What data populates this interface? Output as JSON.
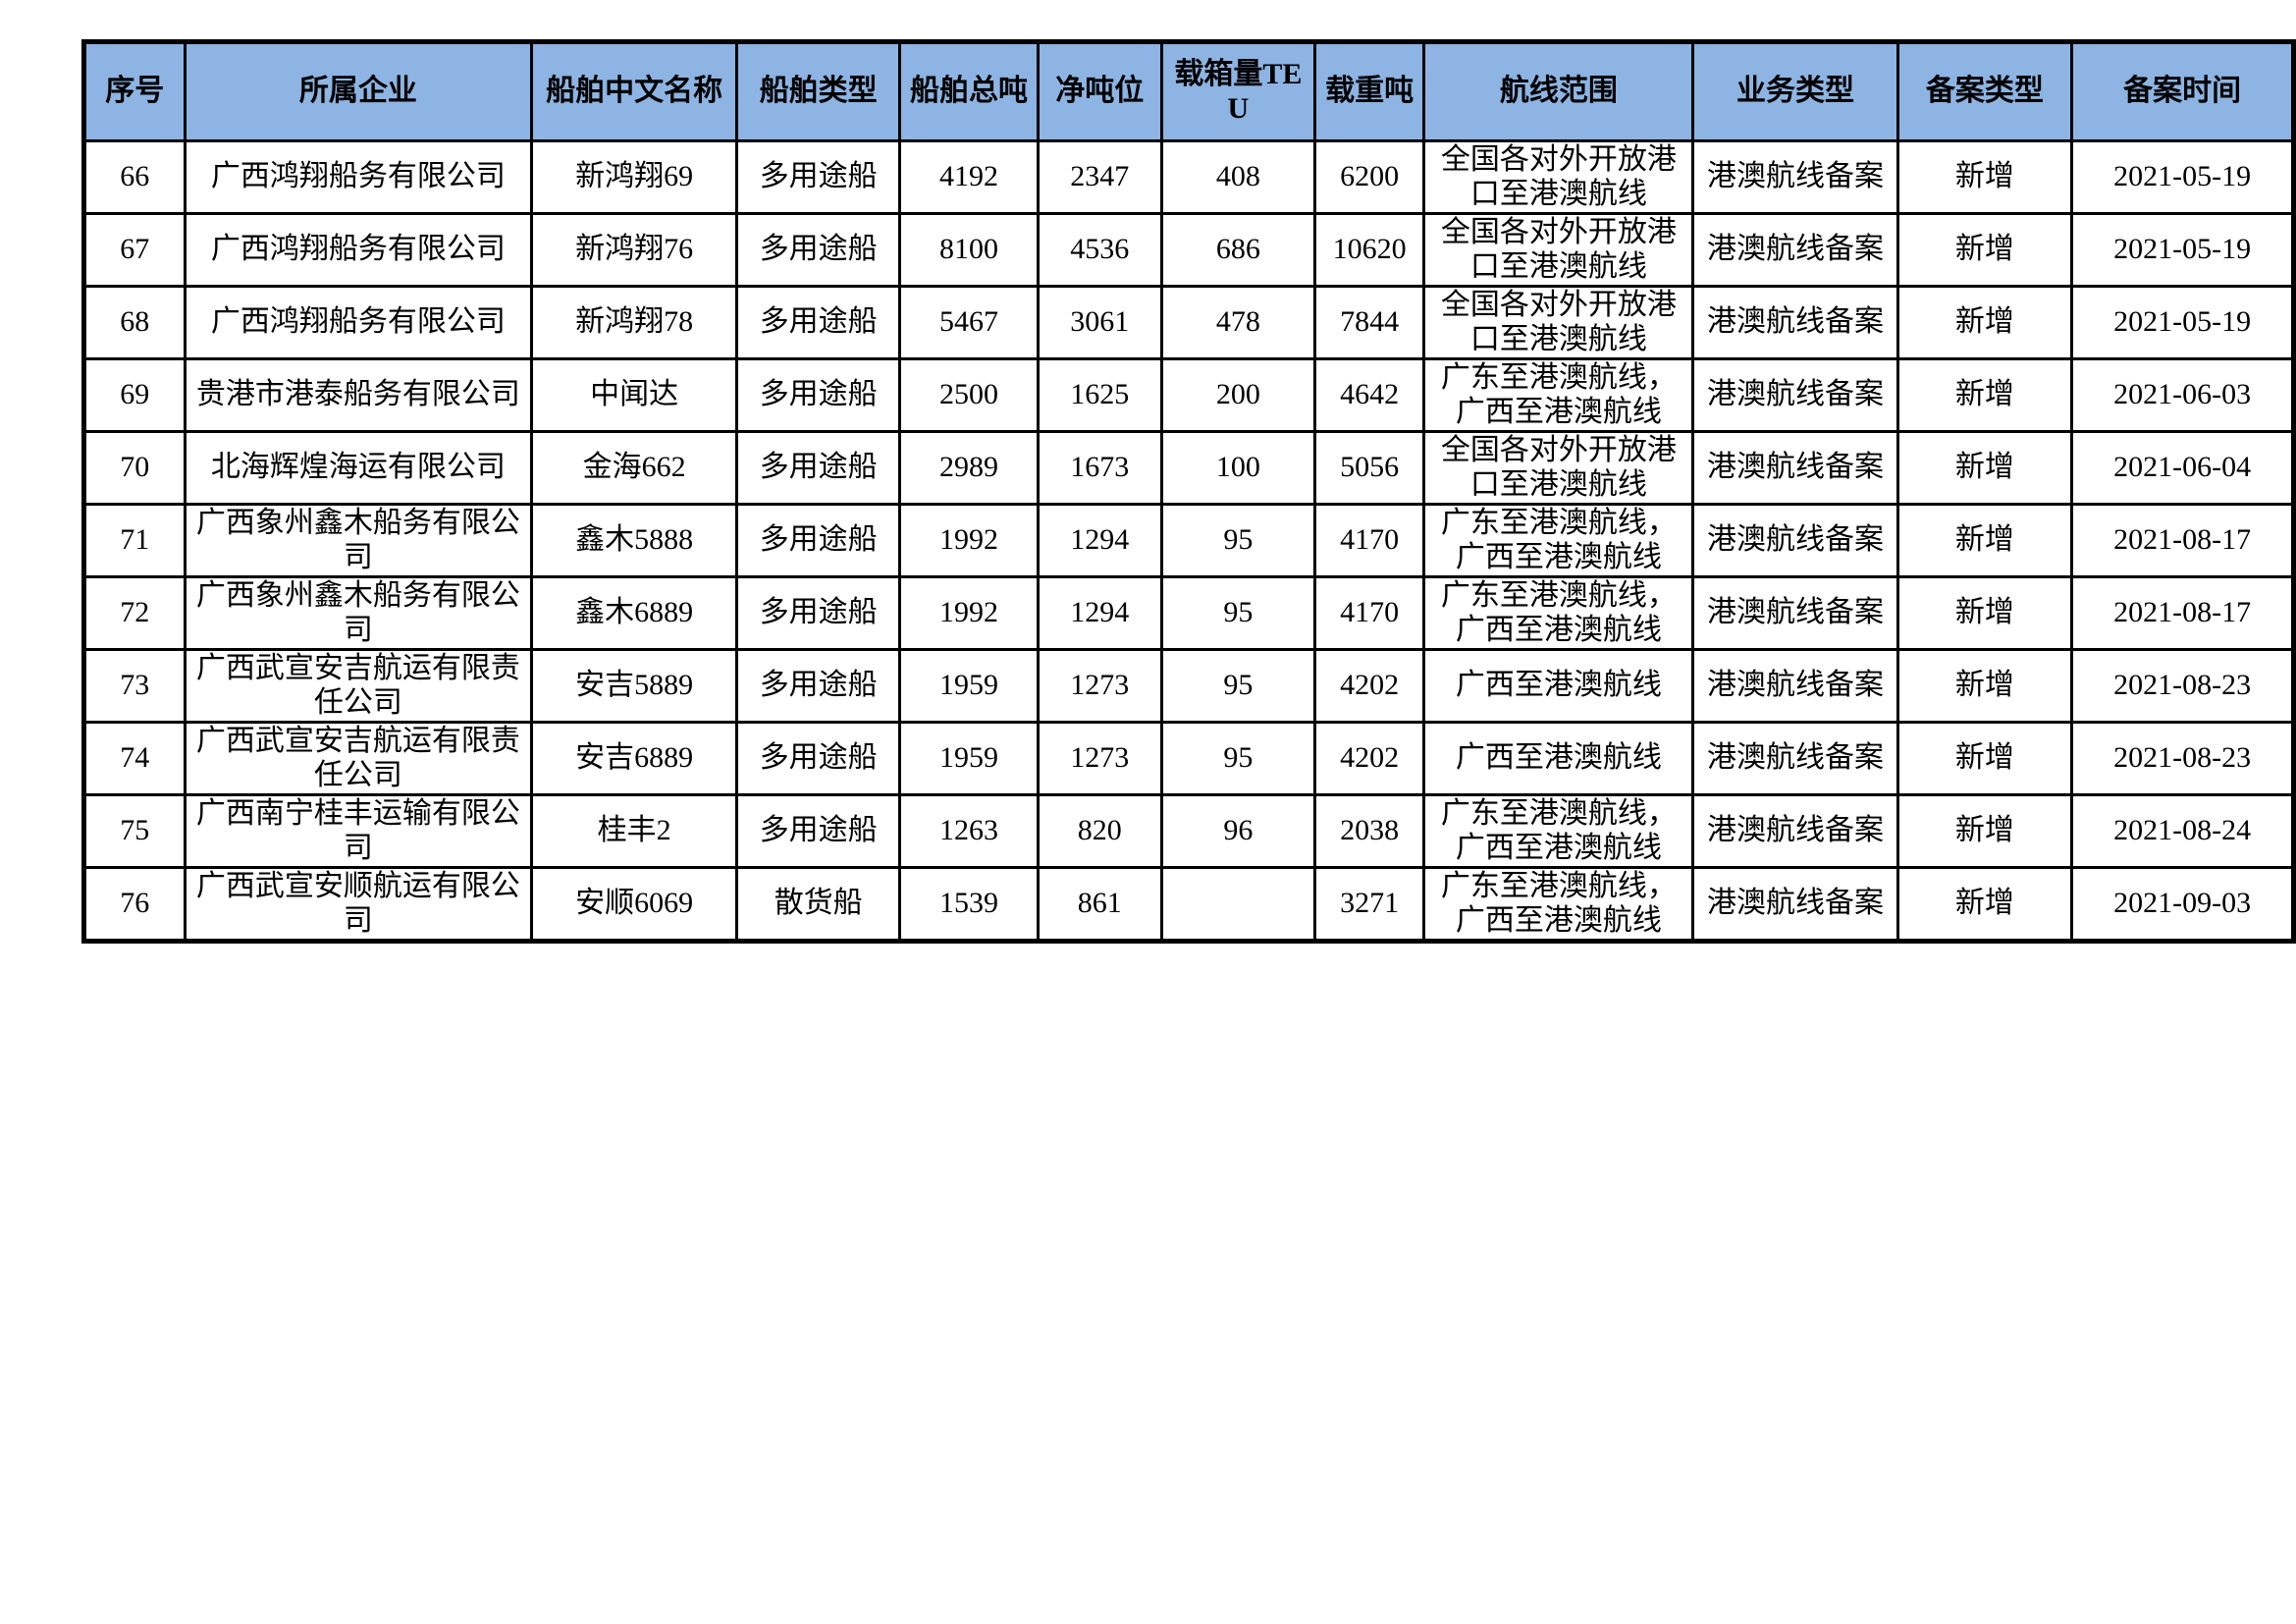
{
  "colors": {
    "header_background": "#8db4e2",
    "border": "#000000",
    "page_background": "#ffffff",
    "text": "#000000"
  },
  "table": {
    "columns": [
      {
        "key": "seq",
        "label": "序号"
      },
      {
        "key": "company",
        "label": "所属企业"
      },
      {
        "key": "ship_name",
        "label": "船舶中文名称"
      },
      {
        "key": "ship_type",
        "label": "船舶类型"
      },
      {
        "key": "gross_tonnage",
        "label": "船舶总吨"
      },
      {
        "key": "net_tonnage",
        "label": "净吨位"
      },
      {
        "key": "teu",
        "label": "载箱量TEU"
      },
      {
        "key": "deadweight",
        "label": "载重吨"
      },
      {
        "key": "route",
        "label": "航线范围"
      },
      {
        "key": "business_type",
        "label": "业务类型"
      },
      {
        "key": "filing_type",
        "label": "备案类型"
      },
      {
        "key": "filing_date",
        "label": "备案时间"
      }
    ],
    "rows": [
      {
        "seq": "66",
        "company": "广西鸿翔船务有限公司",
        "ship_name": "新鸿翔69",
        "ship_type": "多用途船",
        "gross_tonnage": "4192",
        "net_tonnage": "2347",
        "teu": "408",
        "deadweight": "6200",
        "route": "全国各对外开放港口至港澳航线",
        "business_type": "港澳航线备案",
        "filing_type": "新增",
        "filing_date": "2021-05-19"
      },
      {
        "seq": "67",
        "company": "广西鸿翔船务有限公司",
        "ship_name": "新鸿翔76",
        "ship_type": "多用途船",
        "gross_tonnage": "8100",
        "net_tonnage": "4536",
        "teu": "686",
        "deadweight": "10620",
        "route": "全国各对外开放港口至港澳航线",
        "business_type": "港澳航线备案",
        "filing_type": "新增",
        "filing_date": "2021-05-19"
      },
      {
        "seq": "68",
        "company": "广西鸿翔船务有限公司",
        "ship_name": "新鸿翔78",
        "ship_type": "多用途船",
        "gross_tonnage": "5467",
        "net_tonnage": "3061",
        "teu": "478",
        "deadweight": "7844",
        "route": "全国各对外开放港口至港澳航线",
        "business_type": "港澳航线备案",
        "filing_type": "新增",
        "filing_date": "2021-05-19"
      },
      {
        "seq": "69",
        "company": "贵港市港泰船务有限公司",
        "ship_name": "中闻达",
        "ship_type": "多用途船",
        "gross_tonnage": "2500",
        "net_tonnage": "1625",
        "teu": "200",
        "deadweight": "4642",
        "route": "广东至港澳航线，广西至港澳航线",
        "business_type": "港澳航线备案",
        "filing_type": "新增",
        "filing_date": "2021-06-03"
      },
      {
        "seq": "70",
        "company": "北海辉煌海运有限公司",
        "ship_name": "金海662",
        "ship_type": "多用途船",
        "gross_tonnage": "2989",
        "net_tonnage": "1673",
        "teu": "100",
        "deadweight": "5056",
        "route": "全国各对外开放港口至港澳航线",
        "business_type": "港澳航线备案",
        "filing_type": "新增",
        "filing_date": "2021-06-04"
      },
      {
        "seq": "71",
        "company": "广西象州鑫木船务有限公司",
        "ship_name": "鑫木5888",
        "ship_type": "多用途船",
        "gross_tonnage": "1992",
        "net_tonnage": "1294",
        "teu": "95",
        "deadweight": "4170",
        "route": "广东至港澳航线，广西至港澳航线",
        "business_type": "港澳航线备案",
        "filing_type": "新增",
        "filing_date": "2021-08-17"
      },
      {
        "seq": "72",
        "company": "广西象州鑫木船务有限公司",
        "ship_name": "鑫木6889",
        "ship_type": "多用途船",
        "gross_tonnage": "1992",
        "net_tonnage": "1294",
        "teu": "95",
        "deadweight": "4170",
        "route": "广东至港澳航线，广西至港澳航线",
        "business_type": "港澳航线备案",
        "filing_type": "新增",
        "filing_date": "2021-08-17"
      },
      {
        "seq": "73",
        "company": "广西武宣安吉航运有限责任公司",
        "ship_name": "安吉5889",
        "ship_type": "多用途船",
        "gross_tonnage": "1959",
        "net_tonnage": "1273",
        "teu": "95",
        "deadweight": "4202",
        "route": "广西至港澳航线",
        "business_type": "港澳航线备案",
        "filing_type": "新增",
        "filing_date": "2021-08-23"
      },
      {
        "seq": "74",
        "company": "广西武宣安吉航运有限责任公司",
        "ship_name": "安吉6889",
        "ship_type": "多用途船",
        "gross_tonnage": "1959",
        "net_tonnage": "1273",
        "teu": "95",
        "deadweight": "4202",
        "route": "广西至港澳航线",
        "business_type": "港澳航线备案",
        "filing_type": "新增",
        "filing_date": "2021-08-23"
      },
      {
        "seq": "75",
        "company": "广西南宁桂丰运输有限公司",
        "ship_name": "桂丰2",
        "ship_type": "多用途船",
        "gross_tonnage": "1263",
        "net_tonnage": "820",
        "teu": "96",
        "deadweight": "2038",
        "route": "广东至港澳航线，广西至港澳航线",
        "business_type": "港澳航线备案",
        "filing_type": "新增",
        "filing_date": "2021-08-24"
      },
      {
        "seq": "76",
        "company": "广西武宣安顺航运有限公司",
        "ship_name": "安顺6069",
        "ship_type": "散货船",
        "gross_tonnage": "1539",
        "net_tonnage": "861",
        "teu": "",
        "deadweight": "3271",
        "route": "广东至港澳航线，广西至港澳航线",
        "business_type": "港澳航线备案",
        "filing_type": "新增",
        "filing_date": "2021-09-03"
      }
    ]
  }
}
